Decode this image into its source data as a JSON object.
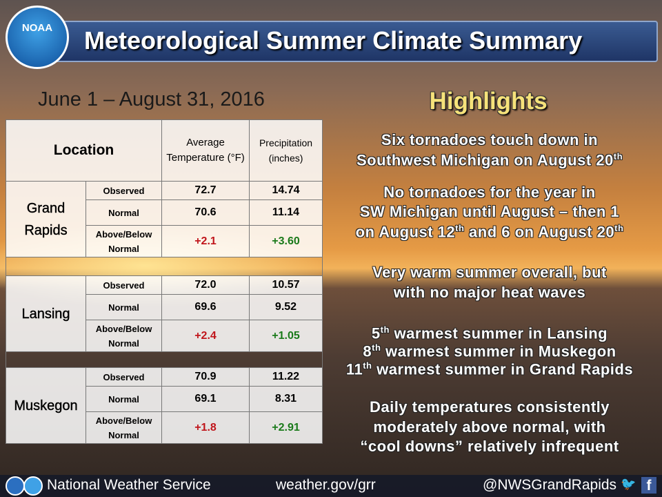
{
  "header": {
    "title": "Meteorological Summer Climate Summary",
    "logo": "NOAA"
  },
  "date_range": "June 1 – August 31, 2016",
  "table": {
    "headers": [
      "Location",
      "Average Temperature (°F)",
      "Precipitation (inches)"
    ],
    "groups": [
      {
        "location": "Grand Rapids",
        "rows": [
          {
            "label": "Observed",
            "temperature": "72.7",
            "precipitation": "14.74"
          },
          {
            "label": "Normal",
            "temperature": "70.6",
            "precipitation": "11.14"
          },
          {
            "label": "Above/Below Normal",
            "temperature": "+2.1",
            "precipitation": "+3.60"
          }
        ]
      },
      {
        "location": "Lansing",
        "rows": [
          {
            "label": "Observed",
            "temperature": "72.0",
            "precipitation": "10.57"
          },
          {
            "label": "Normal",
            "temperature": "69.6",
            "precipitation": "9.52"
          },
          {
            "label": "Above/Below Normal",
            "temperature": "+2.4",
            "precipitation": "+1.05"
          }
        ]
      },
      {
        "location": "Muskegon",
        "rows": [
          {
            "label": "Observed",
            "temperature": "70.9",
            "precipitation": "11.22"
          },
          {
            "label": "Normal",
            "temperature": "69.1",
            "precipitation": "8.31"
          },
          {
            "label": "Above/Below Normal",
            "temperature": "+1.8",
            "precipitation": "+2.91"
          }
        ]
      }
    ]
  },
  "highlights": {
    "title": "Highlights",
    "items": [
      [
        [
          {
            "text": "Six tornadoes touch down in"
          }
        ],
        [
          {
            "text": "Southwest Michigan on August 20"
          },
          {
            "sup": "th"
          }
        ]
      ],
      [
        [
          {
            "text": "No tornadoes for the year in"
          }
        ],
        [
          {
            "text": "SW Michigan until August – then 1"
          }
        ],
        [
          {
            "text": "on August 12"
          },
          {
            "sup": "th"
          },
          {
            "text": " and 6 on August 20"
          },
          {
            "sup": "th"
          }
        ]
      ],
      [
        [
          {
            "text": "Very warm summer overall, but"
          }
        ],
        [
          {
            "text": "with no major heat waves"
          }
        ]
      ],
      [
        [
          {
            "text": "5"
          },
          {
            "sup": "th"
          },
          {
            "text": " warmest summer in Lansing"
          }
        ],
        [
          {
            "text": "8"
          },
          {
            "sup": "th"
          },
          {
            "text": " warmest summer in Muskegon"
          }
        ],
        [
          {
            "text": "11"
          },
          {
            "sup": "th"
          },
          {
            "text": " warmest summer in Grand Rapids"
          }
        ]
      ],
      [
        [
          {
            "text": "Daily temperatures consistently"
          }
        ],
        [
          {
            "text": "moderately above normal, with"
          }
        ],
        [
          {
            "text": "“cool downs” relatively infrequent"
          }
        ]
      ]
    ]
  },
  "footer": {
    "organization": "National Weather Service",
    "website": "weather.gov/grr",
    "social": "@NWSGrandRapids",
    "twitter": "🐦",
    "facebook": "f"
  }
}
